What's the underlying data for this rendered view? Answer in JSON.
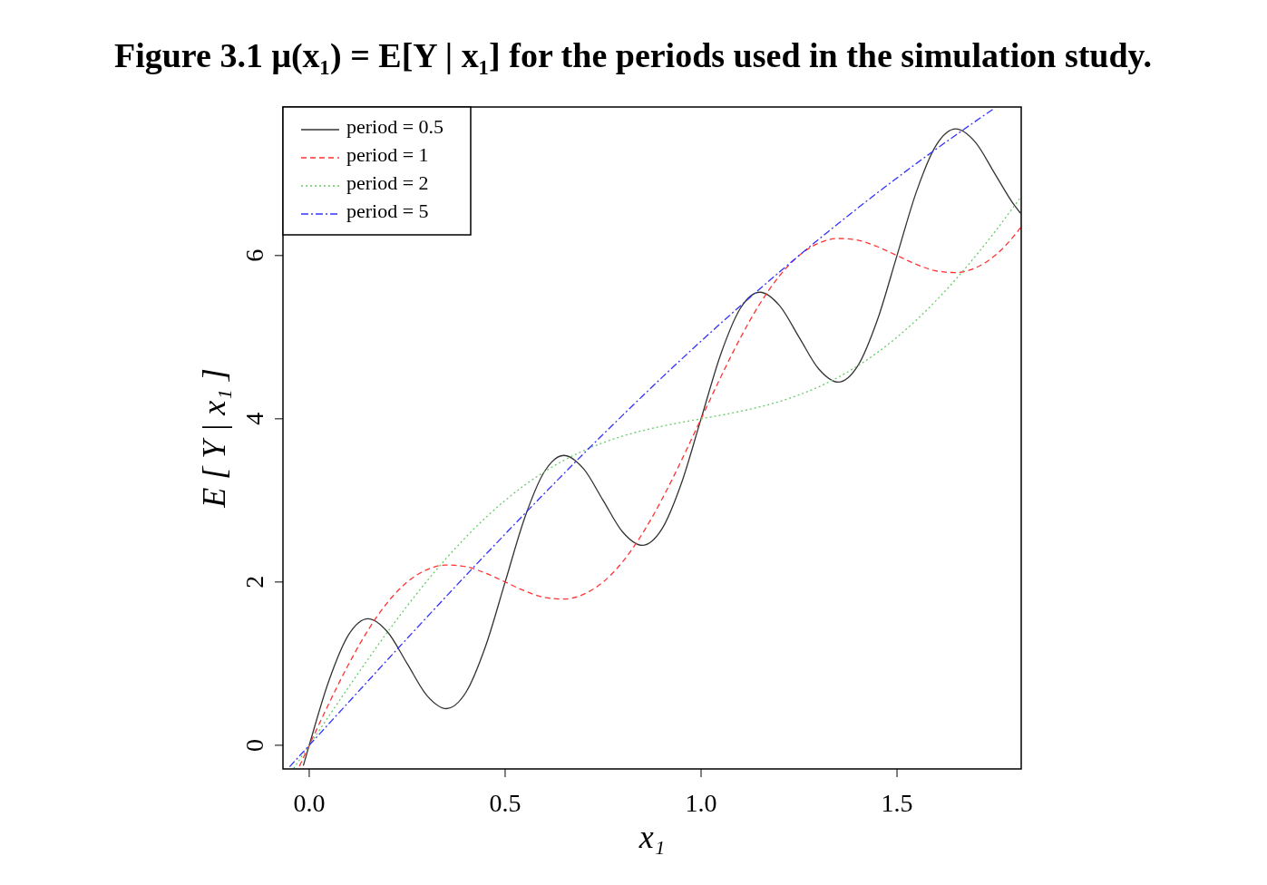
{
  "chart_data": {
    "type": "line",
    "title": "Figure 3.1   μ(x₁) = E[Y | x₁]  for the periods used in the simulation study.",
    "xlabel": "x₁",
    "ylabel": "E [ Y | x₁ ]",
    "xlim": [
      -0.067,
      1.817
    ],
    "ylim": [
      -0.29,
      7.82
    ],
    "xticks": [
      {
        "value": 0,
        "label": "0.0"
      },
      0.5,
      {
        "value": 1,
        "label": "1.0"
      },
      1.5
    ],
    "yticks": [
      0,
      2,
      4,
      6
    ],
    "grid": false,
    "legend": "top left",
    "marker": "none",
    "series": [
      {
        "name": "period = 0.5",
        "color": "#333333",
        "line_style": "solid",
        "x": [
          -0.015,
          0,
          0.05,
          0.1,
          0.15,
          0.2,
          0.25,
          0.3,
          0.35,
          0.4,
          0.45,
          0.5,
          0.55,
          0.6,
          0.65,
          0.7,
          0.75,
          0.8,
          0.85,
          0.9,
          0.95,
          1.0,
          1.05,
          1.1,
          1.15,
          1.2,
          1.25,
          1.3,
          1.35,
          1.4,
          1.45,
          1.5,
          1.55,
          1.6,
          1.65,
          1.7,
          1.75,
          1.8,
          1.815
        ],
        "values": [
          -0.25,
          0,
          0.788,
          1.351,
          1.551,
          1.388,
          1.0,
          0.612,
          0.449,
          0.649,
          1.212,
          2.0,
          2.788,
          3.351,
          3.551,
          3.388,
          3.0,
          2.612,
          2.449,
          2.649,
          3.212,
          4.0,
          4.788,
          5.351,
          5.551,
          5.388,
          5.0,
          4.612,
          4.449,
          4.649,
          5.212,
          6.0,
          6.788,
          7.351,
          7.551,
          7.388,
          7.0,
          6.612,
          6.52
        ]
      },
      {
        "name": "period = 1",
        "color": "#ff3333",
        "line_style": "dashed",
        "x": [
          -0.025,
          0,
          0.05,
          0.1,
          0.15,
          0.2,
          0.25,
          0.3,
          0.35,
          0.4,
          0.45,
          0.5,
          0.55,
          0.6,
          0.65,
          0.7,
          0.75,
          0.8,
          0.85,
          0.9,
          0.95,
          1.0,
          1.05,
          1.1,
          1.15,
          1.2,
          1.25,
          1.3,
          1.35,
          1.4,
          1.45,
          1.5,
          1.55,
          1.6,
          1.65,
          1.7,
          1.75,
          1.8,
          1.815
        ],
        "values": [
          -0.256,
          0,
          0.509,
          0.988,
          1.409,
          1.751,
          2.0,
          2.151,
          2.209,
          2.188,
          2.109,
          2.0,
          1.891,
          1.812,
          1.791,
          1.849,
          2.0,
          2.249,
          2.591,
          3.012,
          3.491,
          4.0,
          4.509,
          4.988,
          5.409,
          5.751,
          6.0,
          6.151,
          6.209,
          6.188,
          6.109,
          6.0,
          5.891,
          5.812,
          5.791,
          5.849,
          6.0,
          6.249,
          6.34
        ]
      },
      {
        "name": "period = 2",
        "color": "#66cc66",
        "line_style": "dotted",
        "x": [
          -0.04,
          0,
          0.05,
          0.1,
          0.15,
          0.2,
          0.25,
          0.3,
          0.35,
          0.4,
          0.45,
          0.5,
          0.55,
          0.6,
          0.65,
          0.7,
          0.75,
          0.8,
          0.85,
          0.9,
          0.95,
          1.0,
          1.05,
          1.1,
          1.15,
          1.2,
          1.25,
          1.3,
          1.35,
          1.4,
          1.45,
          1.5,
          1.55,
          1.6,
          1.65,
          1.7,
          1.75,
          1.8,
          1.815
        ],
        "values": [
          -0.285,
          0,
          0.356,
          0.709,
          1.054,
          1.388,
          1.707,
          2.009,
          2.291,
          2.551,
          2.788,
          3.0,
          3.188,
          3.351,
          3.491,
          3.609,
          3.707,
          3.788,
          3.854,
          3.909,
          3.956,
          4.0,
          4.044,
          4.091,
          4.146,
          4.212,
          4.293,
          4.391,
          4.509,
          4.649,
          4.812,
          5.0,
          5.212,
          5.449,
          5.709,
          5.991,
          6.293,
          6.612,
          6.71
        ]
      },
      {
        "name": "period = 5",
        "color": "#3333ff",
        "line_style": "dashdot",
        "x": [
          -0.05,
          0,
          0.05,
          0.1,
          0.15,
          0.2,
          0.25,
          0.3,
          0.35,
          0.4,
          0.45,
          0.5,
          0.55,
          0.6,
          0.65,
          0.7,
          0.75,
          0.8,
          0.85,
          0.9,
          0.95,
          1.0,
          1.05,
          1.1,
          1.15,
          1.2,
          1.25,
          1.3,
          1.35,
          1.4,
          1.45,
          1.5,
          1.55,
          1.6,
          1.65,
          1.7,
          1.75
        ],
        "values": [
          -0.263,
          0,
          0.263,
          0.525,
          0.787,
          1.049,
          1.309,
          1.568,
          1.826,
          2.082,
          2.336,
          2.588,
          2.837,
          3.085,
          3.329,
          3.571,
          3.809,
          4.044,
          4.276,
          4.505,
          4.73,
          4.951,
          5.169,
          5.382,
          5.592,
          5.798,
          6.0,
          6.198,
          6.392,
          6.582,
          6.769,
          6.951,
          7.13,
          7.305,
          7.476,
          7.644,
          7.809
        ]
      }
    ]
  }
}
